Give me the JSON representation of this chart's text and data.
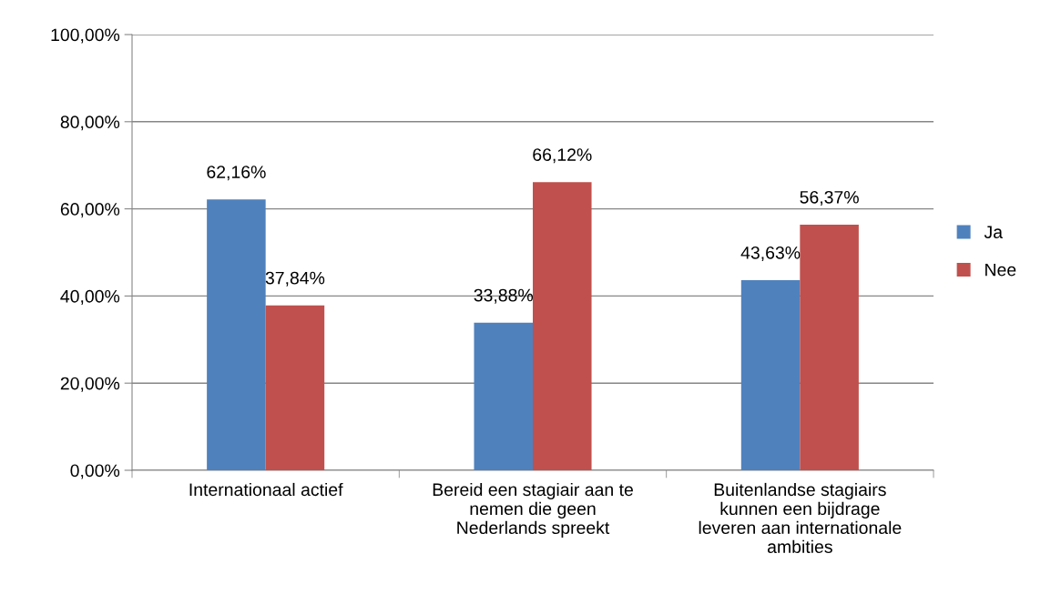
{
  "chart_data": {
    "type": "bar",
    "categories": [
      "Internationaal actief",
      "Bereid een stagiair aan te\nnemen die geen\nNederlands spreekt",
      "Buitenlandse stagiairs\nkunnen een bijdrage\nleveren aan internationale\nambities"
    ],
    "series": [
      {
        "name": "Ja",
        "color": "#4f81bd",
        "values": [
          62.16,
          33.88,
          43.63
        ],
        "value_labels": [
          "62,16%",
          "33,88%",
          "43,63%"
        ]
      },
      {
        "name": "Nee",
        "color": "#c0504d",
        "values": [
          37.84,
          66.12,
          56.37
        ],
        "value_labels": [
          "37,84%",
          "66,12%",
          "56,37%"
        ]
      }
    ],
    "ylim": [
      0,
      100
    ],
    "yticks": [
      {
        "value": 0,
        "label": "0,00%"
      },
      {
        "value": 20,
        "label": "20,00%"
      },
      {
        "value": 40,
        "label": "40,00%"
      },
      {
        "value": 60,
        "label": "60,00%"
      },
      {
        "value": 80,
        "label": "80,00%"
      },
      {
        "value": 100,
        "label": "100,00%"
      }
    ],
    "grid": "y",
    "legend": "right"
  }
}
